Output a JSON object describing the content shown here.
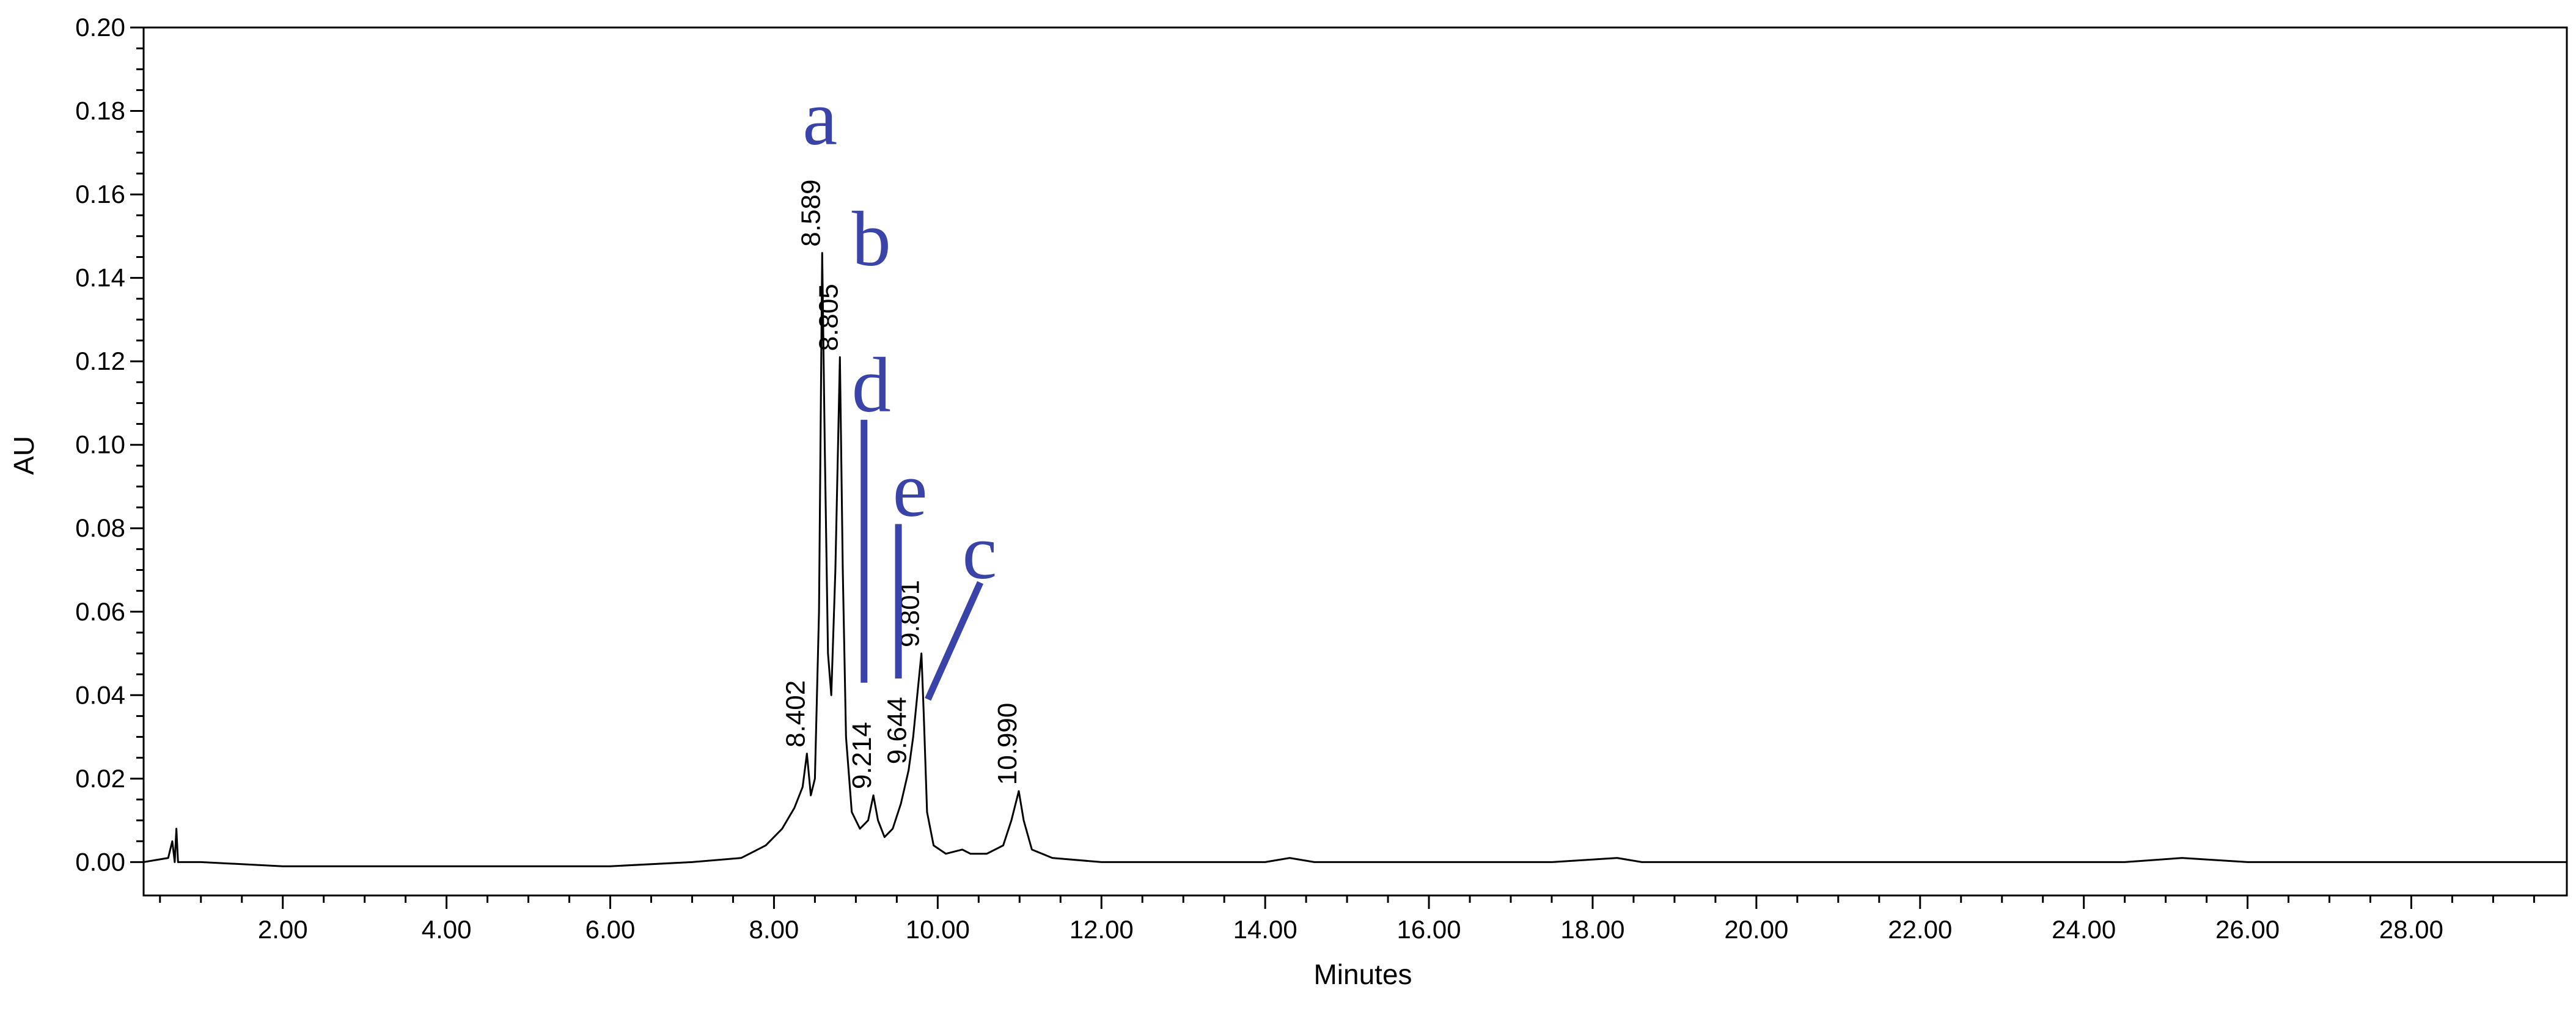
{
  "chart_data": {
    "type": "line",
    "xlabel": "Minutes",
    "ylabel": "AU",
    "xlim": [
      0.3,
      29.9
    ],
    "ylim": [
      -0.008,
      0.2
    ],
    "x_ticks": [
      2,
      4,
      6,
      8,
      10,
      12,
      14,
      16,
      18,
      20,
      22,
      24,
      26,
      28
    ],
    "x_tick_labels": [
      "2.00",
      "4.00",
      "6.00",
      "8.00",
      "10.00",
      "12.00",
      "14.00",
      "16.00",
      "18.00",
      "20.00",
      "22.00",
      "24.00",
      "26.00",
      "28.00"
    ],
    "y_ticks": [
      0,
      0.02,
      0.04,
      0.06,
      0.08,
      0.1,
      0.12,
      0.14,
      0.16,
      0.18,
      0.2
    ],
    "y_tick_labels": [
      "0.00",
      "0.02",
      "0.04",
      "0.06",
      "0.08",
      "0.10",
      "0.12",
      "0.14",
      "0.16",
      "0.18",
      "0.20"
    ],
    "line_color": "#000000",
    "annotation_color": "#3a44a8",
    "grid": false,
    "series": [
      {
        "points": [
          [
            0.3,
            0.0
          ],
          [
            0.6,
            0.001
          ],
          [
            0.65,
            0.005
          ],
          [
            0.68,
            0.0
          ],
          [
            0.7,
            0.008
          ],
          [
            0.72,
            0.0
          ],
          [
            1.0,
            0.0
          ],
          [
            2.0,
            -0.001
          ],
          [
            3.0,
            -0.001
          ],
          [
            4.0,
            -0.001
          ],
          [
            5.0,
            -0.001
          ],
          [
            6.0,
            -0.001
          ],
          [
            7.0,
            0.0
          ],
          [
            7.6,
            0.001
          ],
          [
            7.9,
            0.004
          ],
          [
            8.1,
            0.008
          ],
          [
            8.25,
            0.013
          ],
          [
            8.35,
            0.018
          ],
          [
            8.402,
            0.026
          ],
          [
            8.45,
            0.016
          ],
          [
            8.5,
            0.02
          ],
          [
            8.55,
            0.06
          ],
          [
            8.589,
            0.146
          ],
          [
            8.62,
            0.1
          ],
          [
            8.66,
            0.05
          ],
          [
            8.7,
            0.04
          ],
          [
            8.75,
            0.07
          ],
          [
            8.805,
            0.121
          ],
          [
            8.84,
            0.07
          ],
          [
            8.88,
            0.03
          ],
          [
            8.95,
            0.012
          ],
          [
            9.05,
            0.008
          ],
          [
            9.15,
            0.01
          ],
          [
            9.214,
            0.016
          ],
          [
            9.27,
            0.01
          ],
          [
            9.35,
            0.006
          ],
          [
            9.45,
            0.008
          ],
          [
            9.55,
            0.014
          ],
          [
            9.644,
            0.022
          ],
          [
            9.7,
            0.03
          ],
          [
            9.75,
            0.04
          ],
          [
            9.801,
            0.05
          ],
          [
            9.83,
            0.035
          ],
          [
            9.87,
            0.012
          ],
          [
            9.95,
            0.004
          ],
          [
            10.1,
            0.002
          ],
          [
            10.3,
            0.003
          ],
          [
            10.4,
            0.002
          ],
          [
            10.6,
            0.002
          ],
          [
            10.8,
            0.004
          ],
          [
            10.9,
            0.01
          ],
          [
            10.99,
            0.017
          ],
          [
            11.05,
            0.01
          ],
          [
            11.15,
            0.003
          ],
          [
            11.4,
            0.001
          ],
          [
            12.0,
            0.0
          ],
          [
            14.0,
            0.0
          ],
          [
            14.3,
            0.001
          ],
          [
            14.6,
            0.0
          ],
          [
            16.0,
            0.0
          ],
          [
            17.5,
            0.0
          ],
          [
            18.3,
            0.001
          ],
          [
            18.6,
            0.0
          ],
          [
            20.0,
            0.0
          ],
          [
            22.0,
            0.0
          ],
          [
            24.5,
            0.0
          ],
          [
            25.2,
            0.001
          ],
          [
            26.0,
            0.0
          ],
          [
            27.8,
            0.0
          ],
          [
            29.0,
            0.0
          ],
          [
            29.9,
            0.0
          ]
        ]
      }
    ],
    "peak_labels": [
      {
        "x": 8.402,
        "y": 0.026,
        "text": "8.402"
      },
      {
        "x": 8.589,
        "y": 0.146,
        "text": "8.589"
      },
      {
        "x": 8.805,
        "y": 0.121,
        "text": "8.805"
      },
      {
        "x": 9.214,
        "y": 0.016,
        "text": "9.214"
      },
      {
        "x": 9.644,
        "y": 0.022,
        "text": "9.644"
      },
      {
        "x": 9.801,
        "y": 0.05,
        "text": "9.801"
      },
      {
        "x": 10.99,
        "y": 0.017,
        "text": "10.990"
      }
    ],
    "annotations": [
      {
        "text": "a",
        "x": 8.35,
        "y": 0.172
      },
      {
        "text": "b",
        "x": 8.95,
        "y": 0.143
      },
      {
        "text": "d",
        "x": 8.95,
        "y": 0.108
      },
      {
        "text": "e",
        "x": 9.45,
        "y": 0.083
      },
      {
        "text": "c",
        "x": 10.3,
        "y": 0.068
      }
    ],
    "annotation_lines": [
      {
        "x1": 9.1,
        "y1": 0.106,
        "x2": 9.1,
        "y2": 0.043
      },
      {
        "x1": 9.52,
        "y1": 0.081,
        "x2": 9.52,
        "y2": 0.044
      },
      {
        "x1": 10.52,
        "y1": 0.067,
        "x2": 9.88,
        "y2": 0.039
      }
    ]
  }
}
